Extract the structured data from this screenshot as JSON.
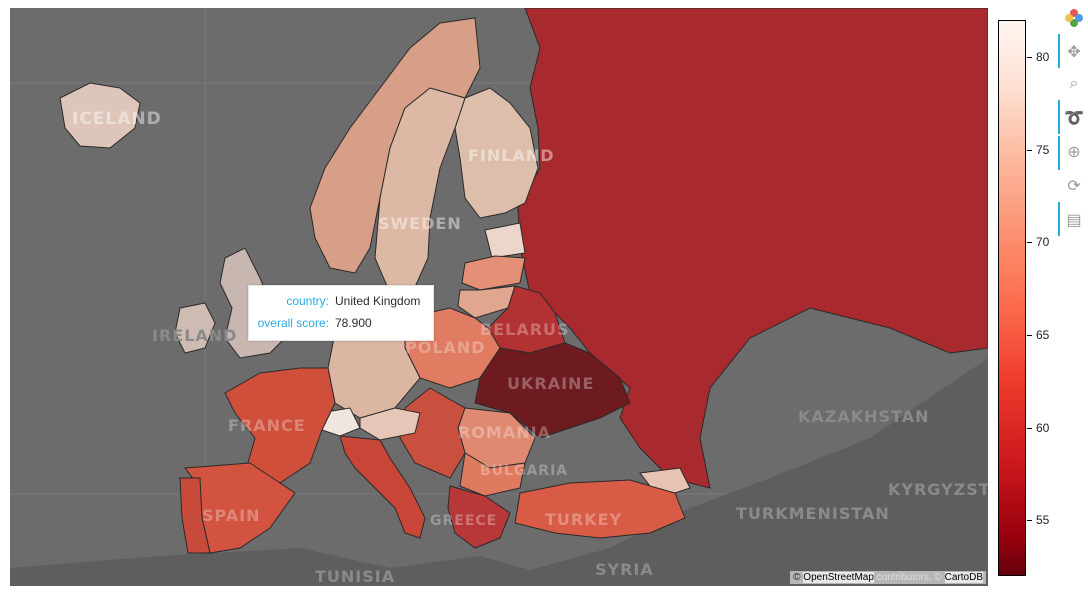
{
  "map": {
    "labels": [
      {
        "text": "ICELAND",
        "name": "label-iceland"
      },
      {
        "text": "FINLAND",
        "name": "label-finland"
      },
      {
        "text": "SWEDEN",
        "name": "label-sweden"
      },
      {
        "text": "IRELAND",
        "name": "label-ireland"
      },
      {
        "text": "BELARUS",
        "name": "label-belarus"
      },
      {
        "text": "POLAND",
        "name": "label-poland"
      },
      {
        "text": "UKRAINE",
        "name": "label-ukraine"
      },
      {
        "text": "FRANCE",
        "name": "label-france"
      },
      {
        "text": "ROMANIA",
        "name": "label-romania"
      },
      {
        "text": "BULGARIA",
        "name": "label-bulgaria"
      },
      {
        "text": "KAZAKHSTAN",
        "name": "label-kazakhstan"
      },
      {
        "text": "KYRGYZSTA",
        "name": "label-kyrgyzstan"
      },
      {
        "text": "TURKMENISTAN",
        "name": "label-turkmenistan"
      },
      {
        "text": "TURKEY",
        "name": "label-turkey"
      },
      {
        "text": "SPAIN",
        "name": "label-spain"
      },
      {
        "text": "TUNISIA",
        "name": "label-tunisia"
      },
      {
        "text": "SYRIA",
        "name": "label-syria"
      },
      {
        "text": "GREECE",
        "name": "label-greece"
      }
    ],
    "attribution": {
      "prefix": "©",
      "osm": "OpenStreetMap",
      "contrib": "contributors, ©",
      "carto": "CartoDB"
    }
  },
  "tooltip": {
    "country_key": "country:",
    "country_value": "United Kingdom",
    "score_key": "overall score:",
    "score_value": "78.900"
  },
  "colorbar": {
    "min": 52,
    "max": 82,
    "ticks": [
      "80",
      "75",
      "70",
      "65",
      "60",
      "55"
    ],
    "palette": [
      "#67000d",
      "#99000d",
      "#cb181d",
      "#ef3b2c",
      "#fb6a4a",
      "#fc9272",
      "#fcbba1",
      "#fee0d2",
      "#fff5f0"
    ]
  },
  "toolbar": {
    "tools": [
      {
        "name": "pan-tool-icon",
        "glyph": "✥"
      },
      {
        "name": "box-zoom-tool-icon",
        "glyph": "⌕"
      },
      {
        "name": "lasso-select-tool-icon",
        "glyph": "➰"
      },
      {
        "name": "wheel-zoom-tool-icon",
        "glyph": "⊕"
      },
      {
        "name": "reset-tool-icon",
        "glyph": "⟳"
      },
      {
        "name": "hover-tool-icon",
        "glyph": "▤"
      }
    ]
  },
  "countries": [
    {
      "name": "Russia",
      "color": "#a82a2e"
    },
    {
      "name": "Ukraine",
      "color": "#6e1b20"
    },
    {
      "name": "Belarus",
      "color": "#b23133"
    },
    {
      "name": "Poland",
      "color": "#e07c62"
    },
    {
      "name": "Norway",
      "color": "#d89f88"
    },
    {
      "name": "Sweden",
      "color": "#ddb9a5"
    },
    {
      "name": "Finland",
      "color": "#ddbeaa"
    },
    {
      "name": "Iceland",
      "color": "#ddc5b9"
    },
    {
      "name": "United Kingdom",
      "color": "#c8b7b0"
    },
    {
      "name": "Ireland",
      "color": "#cebcb3"
    },
    {
      "name": "France",
      "color": "#cf4f3b"
    },
    {
      "name": "Spain",
      "color": "#d2533f"
    },
    {
      "name": "Portugal",
      "color": "#c84a3a"
    },
    {
      "name": "Germany",
      "color": "#dbb6a3"
    },
    {
      "name": "Italy",
      "color": "#c84638"
    },
    {
      "name": "Turkey",
      "color": "#d85c45"
    },
    {
      "name": "Romania",
      "color": "#df8a70"
    },
    {
      "name": "Estonia",
      "color": "#ecd6cc"
    },
    {
      "name": "Latvia",
      "color": "#e49076"
    },
    {
      "name": "Lithuania",
      "color": "#e0a68f"
    },
    {
      "name": "Switzerland",
      "color": "#f0e6e0"
    },
    {
      "name": "Greece",
      "color": "#b8383a"
    }
  ]
}
